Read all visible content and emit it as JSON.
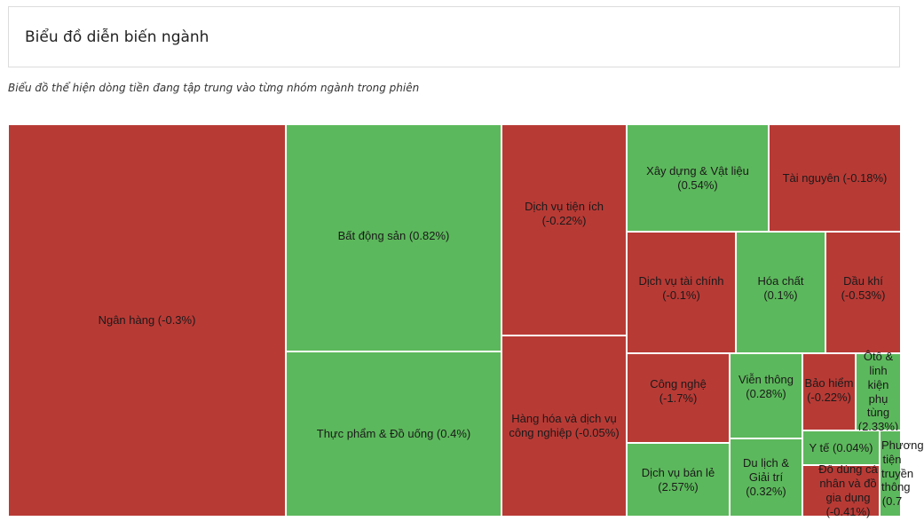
{
  "header": {
    "title": "Biểu đồ diễn biến ngành"
  },
  "subtitle": "Biểu đồ thể hiện dòng tiền đang tập trung vào từng nhóm ngành trong phiên",
  "colors": {
    "positive": "#5cb85c",
    "negative": "#b83a35"
  },
  "chart_data": {
    "type": "treemap",
    "title": "Biểu đồ diễn biến ngành",
    "items": [
      {
        "name": "Ngân hàng",
        "change": -0.3,
        "label": "Ngân hàng (-0.3%)"
      },
      {
        "name": "Bất động sản",
        "change": 0.82,
        "label": "Bất động sản (0.82%)"
      },
      {
        "name": "Thực phẩm & Đồ uống",
        "change": 0.4,
        "label": "Thực phẩm & Đồ uống (0.4%)"
      },
      {
        "name": "Dịch vụ tiện ích",
        "change": -0.22,
        "label": "Dịch vụ tiện ích (-0.22%)"
      },
      {
        "name": "Hàng hóa và dịch vụ công nghiệp",
        "change": -0.05,
        "label": "Hàng hóa và dịch vụ công nghiệp (-0.05%)"
      },
      {
        "name": "Xây dựng & Vật liệu",
        "change": 0.54,
        "label": "Xây dựng & Vật liệu (0.54%)"
      },
      {
        "name": "Tài nguyên",
        "change": -0.18,
        "label": "Tài nguyên (-0.18%)"
      },
      {
        "name": "Dịch vụ tài chính",
        "change": -0.1,
        "label": "Dịch vụ tài chính (-0.1%)"
      },
      {
        "name": "Hóa chất",
        "change": 0.1,
        "label": "Hóa chất (0.1%)"
      },
      {
        "name": "Dầu khí",
        "change": -0.53,
        "label": "Dầu khí (-0.53%)"
      },
      {
        "name": "Công nghệ",
        "change": -1.7,
        "label": "Công nghệ (-1.7%)"
      },
      {
        "name": "Viễn thông",
        "change": 0.28,
        "label": "Viễn thông (0.28%)"
      },
      {
        "name": "Bảo hiểm",
        "change": -0.22,
        "label": "Bảo hiểm (-0.22%)"
      },
      {
        "name": "Ôtô & linh kiện phụ tùng",
        "change": 2.33,
        "label": "Ôtô & linh kiện phụ tùng (2.33%)"
      },
      {
        "name": "Dịch vụ bán lẻ",
        "change": 2.57,
        "label": "Dịch vụ bán lẻ (2.57%)"
      },
      {
        "name": "Du lịch & Giải trí",
        "change": 0.32,
        "label": "Du lịch & Giải trí (0.32%)"
      },
      {
        "name": "Đồ dùng cá nhân và đồ gia dụng",
        "change": -0.41,
        "label": "Đồ dùng cá nhân và đồ gia dụng (-0.41%)"
      },
      {
        "name": "Y tế",
        "change": 0.04,
        "label": "Y tế (0.04%)"
      },
      {
        "name": "Phương tiện truyền thông",
        "change": 0.7,
        "label": "Phương tiện truyền thông (0.7"
      }
    ]
  }
}
